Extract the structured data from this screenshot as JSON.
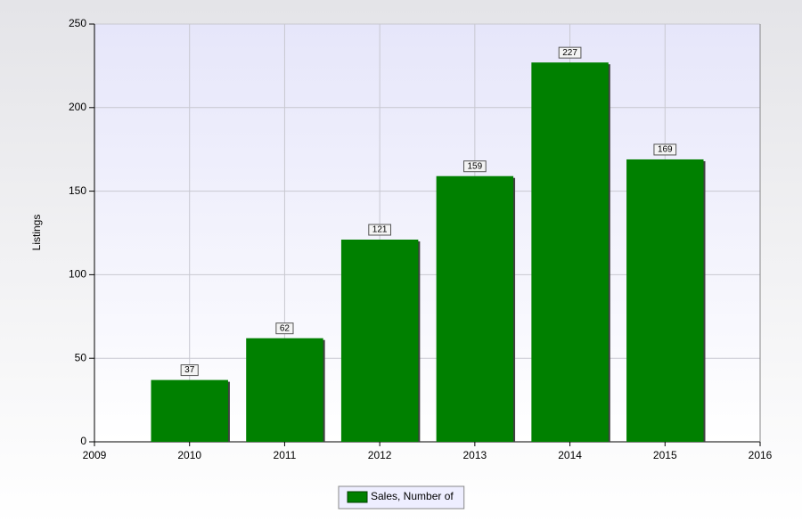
{
  "chart_data": {
    "type": "bar",
    "y_label": "Listings",
    "x": [
      2010,
      2011,
      2012,
      2013,
      2014,
      2015
    ],
    "series": [
      {
        "name": "Sales, Number of",
        "color": "#008000",
        "values": [
          37,
          62,
          121,
          159,
          227,
          169
        ]
      }
    ],
    "xlim": [
      2009,
      2016
    ],
    "xticks": [
      2009,
      2010,
      2011,
      2012,
      2013,
      2014,
      2015,
      2016
    ],
    "ylim": [
      0,
      250
    ],
    "yticks": [
      0,
      50,
      100,
      150,
      200,
      250
    ],
    "grid": true,
    "legend": "bottom"
  }
}
